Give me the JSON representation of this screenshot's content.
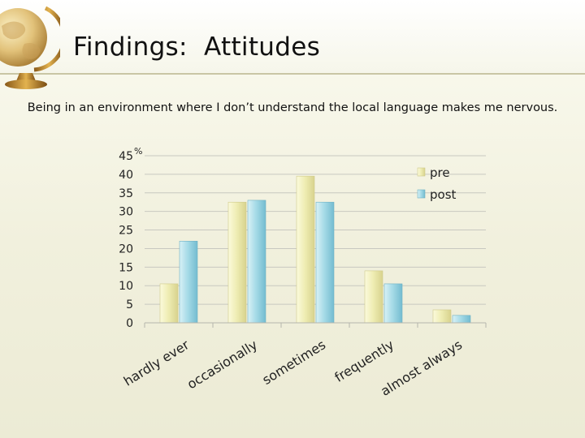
{
  "slide": {
    "title": "Findings:  Attitudes",
    "subtitle": "Being in an environment where I don’t understand the local language makes me nervous."
  },
  "colors": {
    "pre": "#f1efb8",
    "post": "#a9dde9",
    "grid": "#c8c8c0"
  },
  "chart_data": {
    "type": "bar",
    "categories": [
      "hardly ever",
      "occasionally",
      "sometimes",
      "frequently",
      "almost always"
    ],
    "series": [
      {
        "name": "pre",
        "values": [
          10.5,
          32.5,
          39.5,
          14,
          3.5
        ]
      },
      {
        "name": "post",
        "values": [
          22,
          33,
          32.5,
          10.5,
          2
        ]
      }
    ],
    "ylim": [
      0,
      45
    ],
    "yticks": [
      0,
      5,
      10,
      15,
      20,
      25,
      30,
      35,
      40,
      45
    ],
    "yunit": "%",
    "grid": true,
    "legend": "top-right"
  }
}
